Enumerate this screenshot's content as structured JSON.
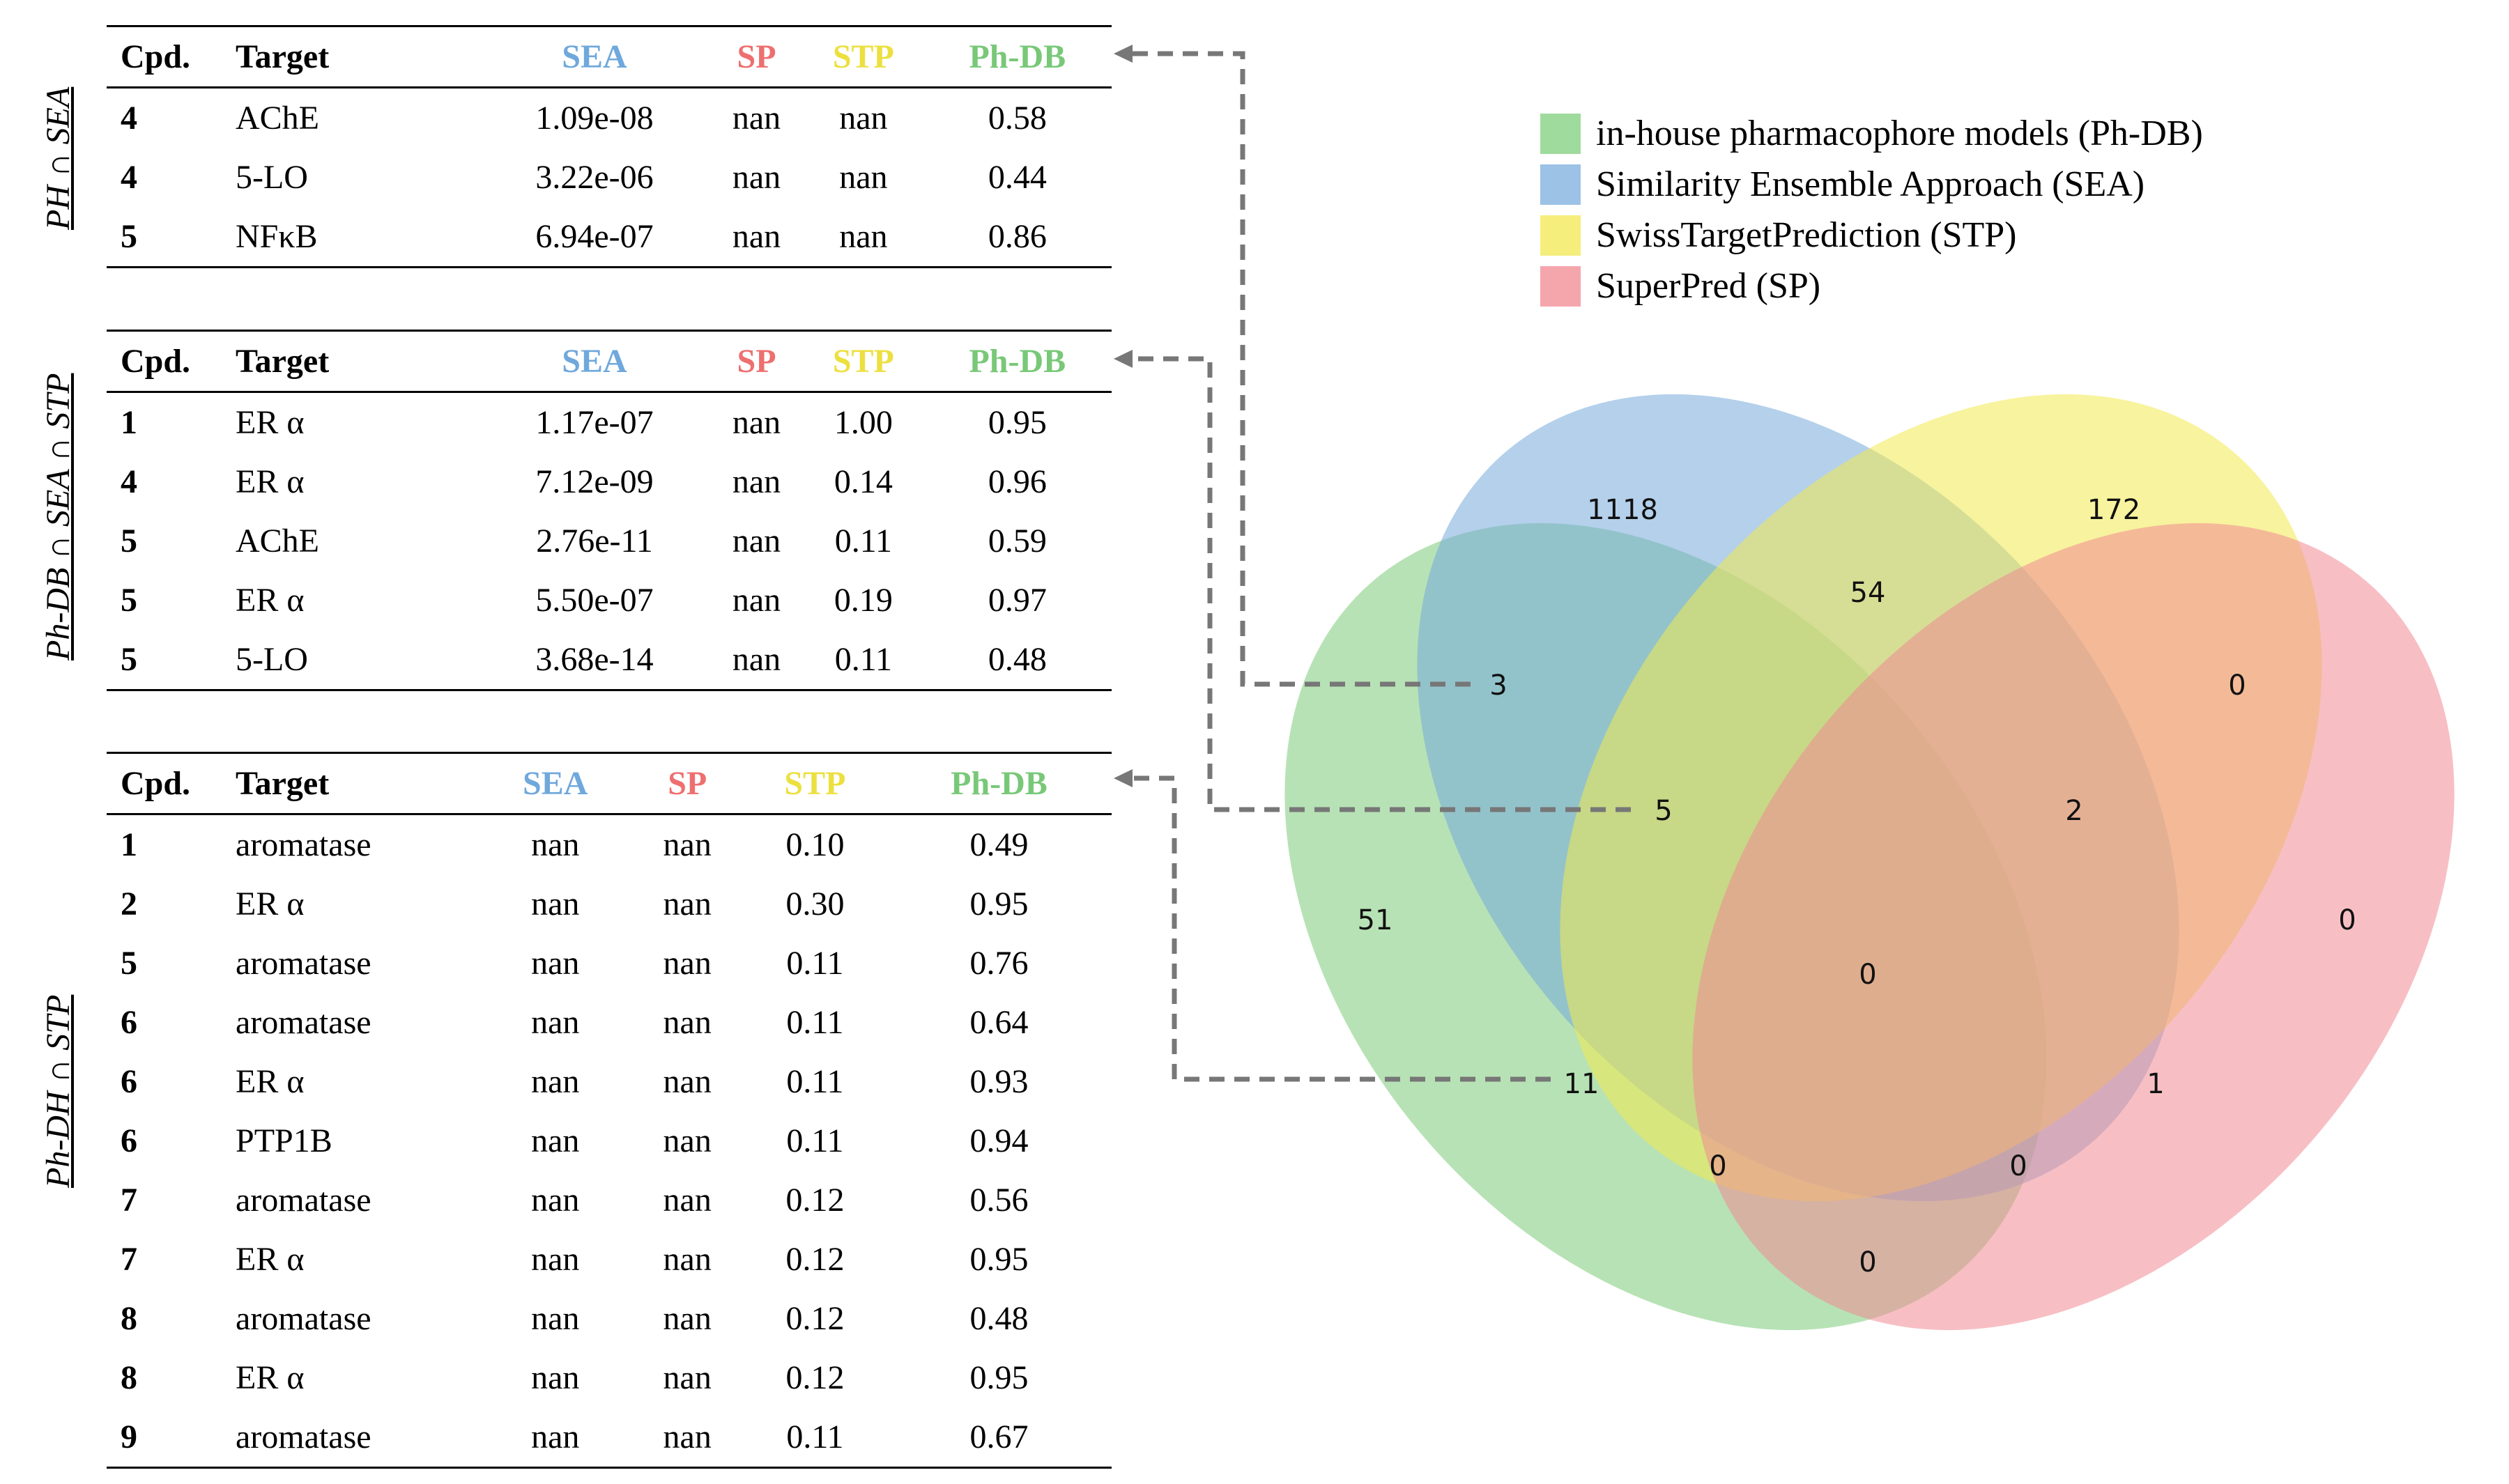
{
  "tables": [
    {
      "side_label": "PH ∩ SEA",
      "headers": {
        "cpd": "Cpd.",
        "target": "Target",
        "sea": "SEA",
        "sp": "SP",
        "stp": "STP",
        "phdb": "Ph-DB"
      },
      "rows": [
        {
          "cpd": "4",
          "target": "AChE",
          "sea": "1.09e-08",
          "sp": "nan",
          "stp": "nan",
          "phdb": "0.58"
        },
        {
          "cpd": "4",
          "target": "5-LO",
          "sea": "3.22e-06",
          "sp": "nan",
          "stp": "nan",
          "phdb": "0.44"
        },
        {
          "cpd": "5",
          "target": "NFκB",
          "sea": "6.94e-07",
          "sp": "nan",
          "stp": "nan",
          "phdb": "0.86"
        }
      ]
    },
    {
      "side_label": "Ph-DB ∩ SEA ∩ STP",
      "headers": {
        "cpd": "Cpd.",
        "target": "Target",
        "sea": "SEA",
        "sp": "SP",
        "stp": "STP",
        "phdb": "Ph-DB"
      },
      "rows": [
        {
          "cpd": "1",
          "target": "ER α",
          "sea": "1.17e-07",
          "sp": "nan",
          "stp": "1.00",
          "phdb": "0.95"
        },
        {
          "cpd": "4",
          "target": "ER α",
          "sea": "7.12e-09",
          "sp": "nan",
          "stp": "0.14",
          "phdb": "0.96"
        },
        {
          "cpd": "5",
          "target": "AChE",
          "sea": "2.76e-11",
          "sp": "nan",
          "stp": "0.11",
          "phdb": "0.59"
        },
        {
          "cpd": "5",
          "target": "ER α",
          "sea": "5.50e-07",
          "sp": "nan",
          "stp": "0.19",
          "phdb": "0.97"
        },
        {
          "cpd": "5",
          "target": "5-LO",
          "sea": "3.68e-14",
          "sp": "nan",
          "stp": "0.11",
          "phdb": "0.48"
        }
      ]
    },
    {
      "side_label": "Ph-DH ∩ STP",
      "headers": {
        "cpd": "Cpd.",
        "target": "Target",
        "sea": "SEA",
        "sp": "SP",
        "stp": "STP",
        "phdb": "Ph-DB"
      },
      "rows": [
        {
          "cpd": "1",
          "target": "aromatase",
          "sea": "nan",
          "sp": "nan",
          "stp": "0.10",
          "phdb": "0.49"
        },
        {
          "cpd": "2",
          "target": "ER α",
          "sea": "nan",
          "sp": "nan",
          "stp": "0.30",
          "phdb": "0.95"
        },
        {
          "cpd": "5",
          "target": "aromatase",
          "sea": "nan",
          "sp": "nan",
          "stp": "0.11",
          "phdb": "0.76"
        },
        {
          "cpd": "6",
          "target": "aromatase",
          "sea": "nan",
          "sp": "nan",
          "stp": "0.11",
          "phdb": "0.64"
        },
        {
          "cpd": "6",
          "target": "ER α",
          "sea": "nan",
          "sp": "nan",
          "stp": "0.11",
          "phdb": "0.93"
        },
        {
          "cpd": "6",
          "target": "PTP1B",
          "sea": "nan",
          "sp": "nan",
          "stp": "0.11",
          "phdb": "0.94"
        },
        {
          "cpd": "7",
          "target": "aromatase",
          "sea": "nan",
          "sp": "nan",
          "stp": "0.12",
          "phdb": "0.56"
        },
        {
          "cpd": "7",
          "target": "ER α",
          "sea": "nan",
          "sp": "nan",
          "stp": "0.12",
          "phdb": "0.95"
        },
        {
          "cpd": "8",
          "target": "aromatase",
          "sea": "nan",
          "sp": "nan",
          "stp": "0.12",
          "phdb": "0.48"
        },
        {
          "cpd": "8",
          "target": "ER α",
          "sea": "nan",
          "sp": "nan",
          "stp": "0.12",
          "phdb": "0.95"
        },
        {
          "cpd": "9",
          "target": "aromatase",
          "sea": "nan",
          "sp": "nan",
          "stp": "0.11",
          "phdb": "0.67"
        }
      ]
    }
  ],
  "legend": [
    {
      "label": "in-house pharmacophore models (Ph-DB)",
      "color": "#9fdb9c"
    },
    {
      "label": "Similarity Ensemble Approach (SEA)",
      "color": "#9cc2e6"
    },
    {
      "label": "SwissTargetPrediction (STP)",
      "color": "#f5ee7c"
    },
    {
      "label": "SuperPred (SP)",
      "color": "#f5a6ad"
    }
  ],
  "venn": {
    "set_colors": {
      "phdb": "#7ccb78",
      "sea": "#77aadb",
      "stp": "#f2e94e",
      "sp": "#f08a94"
    },
    "regions": {
      "sea_only": "1118",
      "stp_only": "172",
      "sea_stp": "54",
      "phdb_sea": "3",
      "stp_sp": "0",
      "phdb_sea_stp": "5",
      "sea_stp_sp": "2",
      "phdb_only": "51",
      "sp_only": "0",
      "all_four": "0",
      "phdb_stp": "11",
      "sea_sp": "1",
      "phdb_stp_sp": "0",
      "phdb_sea_sp": "0",
      "phdb_sp": "0"
    },
    "line_color": "#777777"
  }
}
